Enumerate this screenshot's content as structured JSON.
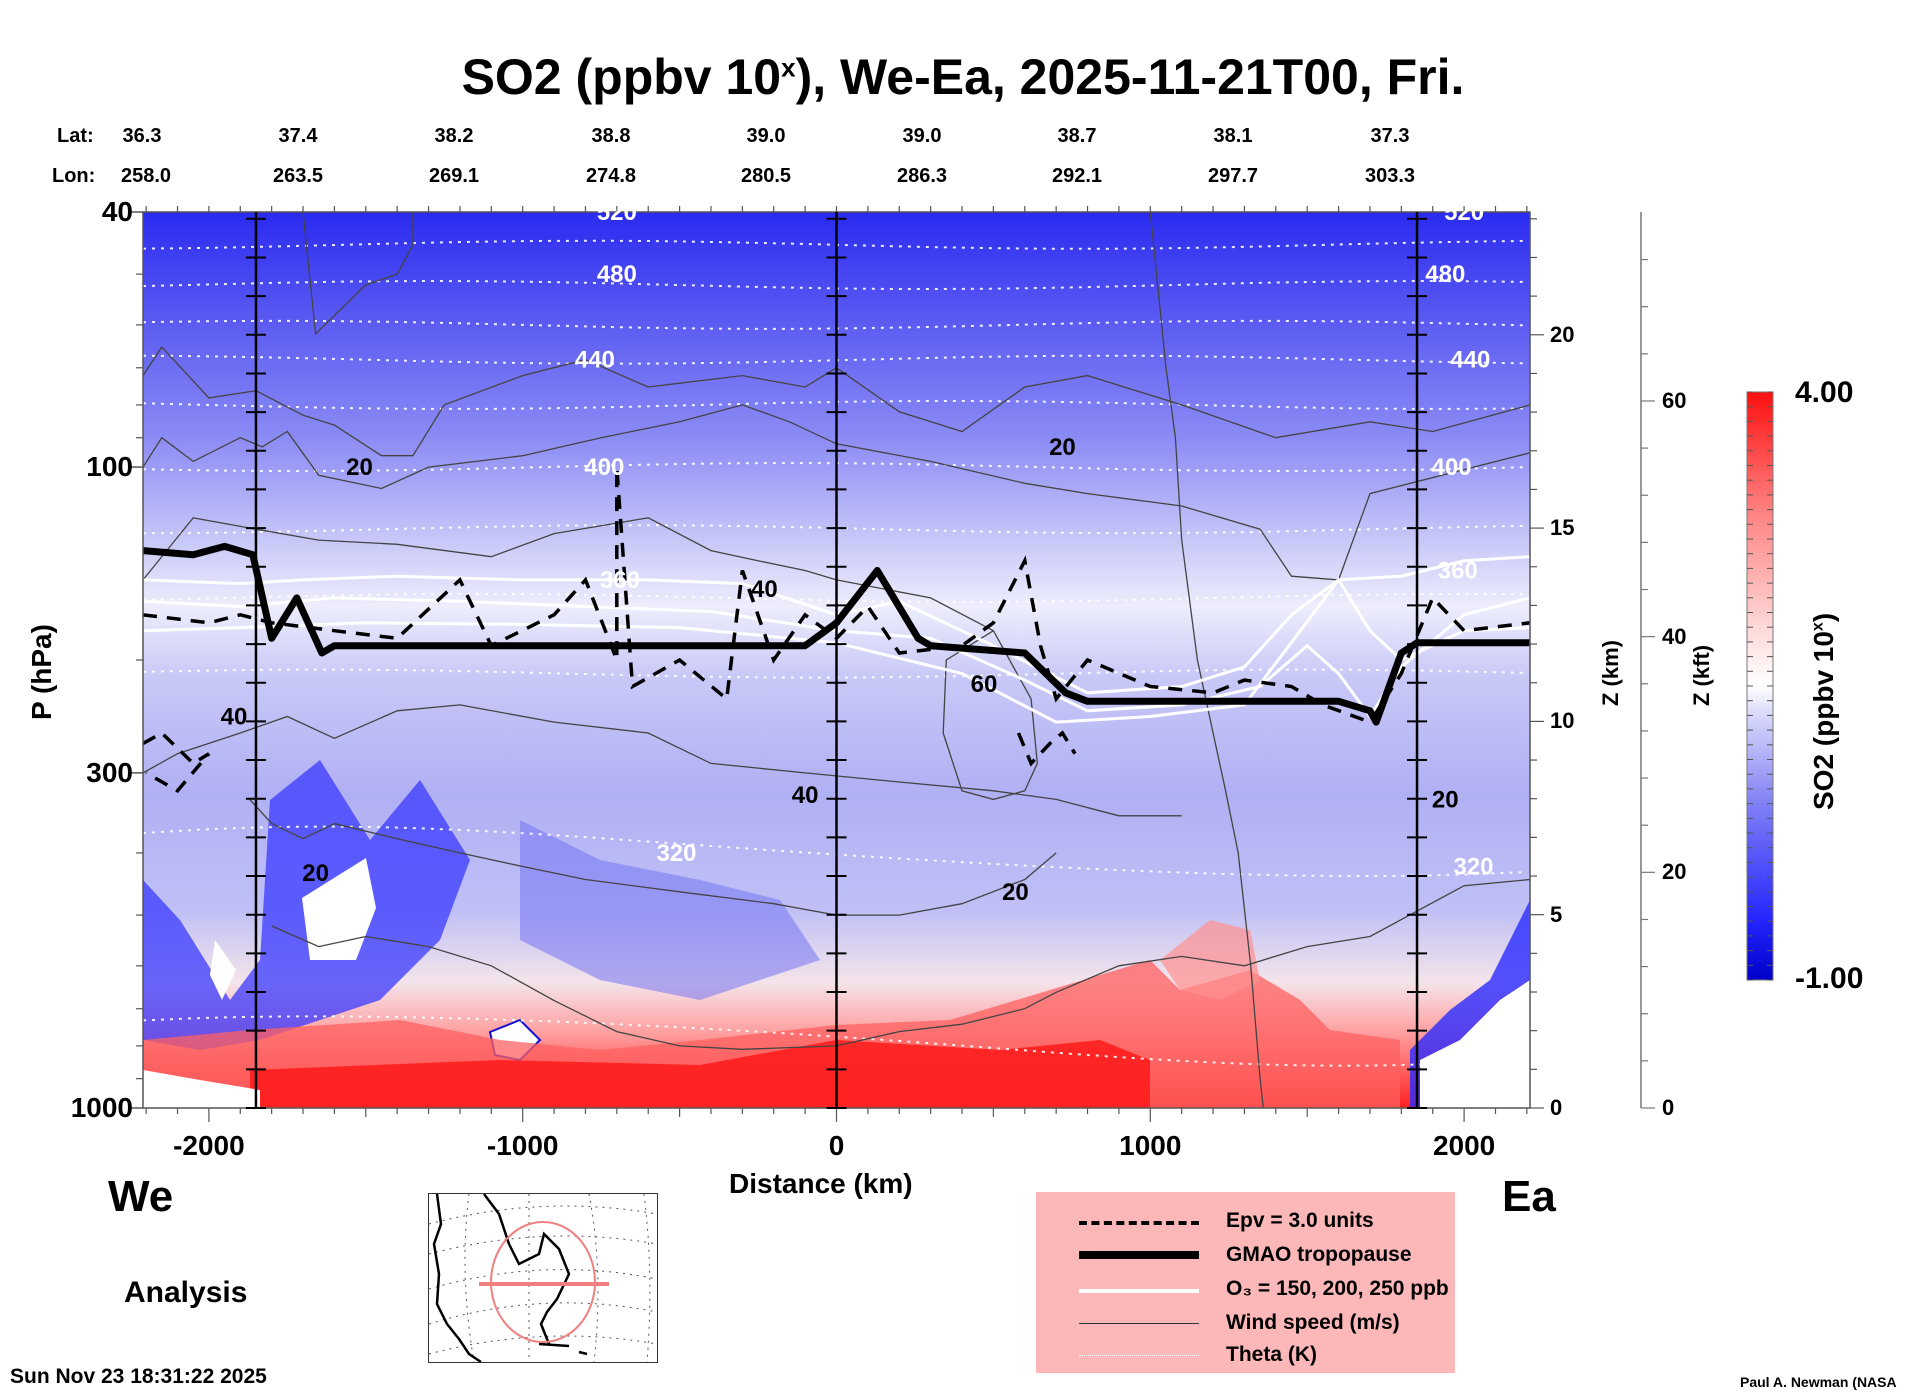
{
  "title": {
    "main": "SO2 (ppbv 10",
    "sup": "x",
    "rest": "), We-Ea, 2025-11-21T00, Fri."
  },
  "header": {
    "lat_label": "Lat:",
    "lon_label": "Lon:",
    "lat": [
      "36.3",
      "37.4",
      "38.2",
      "38.8",
      "39.0",
      "39.0",
      "38.7",
      "38.1",
      "37.3"
    ],
    "lon": [
      "258.0",
      "263.5",
      "269.1",
      "274.8",
      "280.5",
      "286.3",
      "292.1",
      "297.7",
      "303.3"
    ]
  },
  "labels": {
    "we": "We",
    "ea": "Ea",
    "analysis": "Analysis",
    "timestamp": "Sun Nov 23 18:31:22 2025",
    "credit": "Paul A. Newman (NASA"
  },
  "legend": {
    "items": [
      {
        "style": "dashed",
        "text": "Epv = 3.0 units"
      },
      {
        "style": "thick",
        "text": "GMAO tropopause"
      },
      {
        "style": "white",
        "text": "O₃ = 150, 200, 250 ppb"
      },
      {
        "style": "thin",
        "text": "Wind speed (m/s)"
      },
      {
        "style": "dotted",
        "text": "Theta (K)"
      }
    ]
  },
  "colors": {
    "low": "#0000c8",
    "mid": "#ffffff",
    "high": "#ff0000",
    "legend_bg": "#fcb8b8"
  },
  "chart_data": {
    "type": "heatmap",
    "title": "SO2 (ppbv 10^x), We-Ea, 2025-11-21T00, Fri.",
    "xlabel": "Distance (km)",
    "ylabel": "P (hPa)",
    "ylabel_right_1": "Z (km)",
    "ylabel_right_2": "Z (kft)",
    "colorbar_label": "SO2 (ppbv 10^x)",
    "xlim": [
      -2210,
      2210
    ],
    "ylim": [
      1000,
      40
    ],
    "yscale": "log",
    "x_ticks": [
      -2000,
      -1000,
      0,
      1000,
      2000
    ],
    "x_tick_labels": [
      "-2000",
      "-1000",
      "0",
      "1000",
      "2000"
    ],
    "y_ticks": [
      40,
      100,
      300,
      1000
    ],
    "y_tick_labels": [
      "40",
      "100",
      "300",
      "1000"
    ],
    "z_km_ticks": [
      0,
      5,
      10,
      15,
      20
    ],
    "z_kft_ticks": [
      0,
      20,
      40,
      60
    ],
    "colorbar_range": [
      -1.0,
      4.0
    ],
    "colorbar_tick_labels": [
      "4.00",
      "-1.00"
    ],
    "station_lines_km": [
      -1850,
      0,
      1850
    ],
    "theta_labels": [
      {
        "value": "520",
        "x": -700,
        "p": 40
      },
      {
        "value": "480",
        "x": -700,
        "p": 50
      },
      {
        "value": "440",
        "x": -770,
        "p": 68
      },
      {
        "value": "400",
        "x": -740,
        "p": 100
      },
      {
        "value": "360",
        "x": -690,
        "p": 150
      },
      {
        "value": "320",
        "x": -510,
        "p": 400
      },
      {
        "value": "520",
        "x": 2000,
        "p": 40
      },
      {
        "value": "480",
        "x": 1940,
        "p": 50
      },
      {
        "value": "440",
        "x": 2020,
        "p": 68
      },
      {
        "value": "400",
        "x": 1960,
        "p": 100
      },
      {
        "value": "360",
        "x": 1980,
        "p": 145
      },
      {
        "value": "320",
        "x": 2030,
        "p": 420
      }
    ],
    "wind_labels": [
      {
        "value": "20",
        "x": -1520,
        "p": 100
      },
      {
        "value": "20",
        "x": 720,
        "p": 93
      },
      {
        "value": "40",
        "x": -230,
        "p": 155
      },
      {
        "value": "60",
        "x": 470,
        "p": 218
      },
      {
        "value": "40",
        "x": -1920,
        "p": 245
      },
      {
        "value": "40",
        "x": -100,
        "p": 325
      },
      {
        "value": "20",
        "x": -1660,
        "p": 430
      },
      {
        "value": "20",
        "x": 570,
        "p": 460
      },
      {
        "value": "20",
        "x": 1940,
        "p": 330
      }
    ],
    "tropopause_p": [
      {
        "x": -2210,
        "p": 135
      },
      {
        "x": -2050,
        "p": 137
      },
      {
        "x": -1950,
        "p": 133
      },
      {
        "x": -1860,
        "p": 137
      },
      {
        "x": -1800,
        "p": 185
      },
      {
        "x": -1720,
        "p": 160
      },
      {
        "x": -1640,
        "p": 195
      },
      {
        "x": -1600,
        "p": 190
      },
      {
        "x": -100,
        "p": 190
      },
      {
        "x": 0,
        "p": 175
      },
      {
        "x": 130,
        "p": 145
      },
      {
        "x": 260,
        "p": 185
      },
      {
        "x": 300,
        "p": 190
      },
      {
        "x": 600,
        "p": 195
      },
      {
        "x": 730,
        "p": 225
      },
      {
        "x": 800,
        "p": 232
      },
      {
        "x": 1600,
        "p": 232
      },
      {
        "x": 1700,
        "p": 240
      },
      {
        "x": 1720,
        "p": 250
      },
      {
        "x": 1800,
        "p": 195
      },
      {
        "x": 1850,
        "p": 188
      },
      {
        "x": 2210,
        "p": 188
      }
    ]
  }
}
